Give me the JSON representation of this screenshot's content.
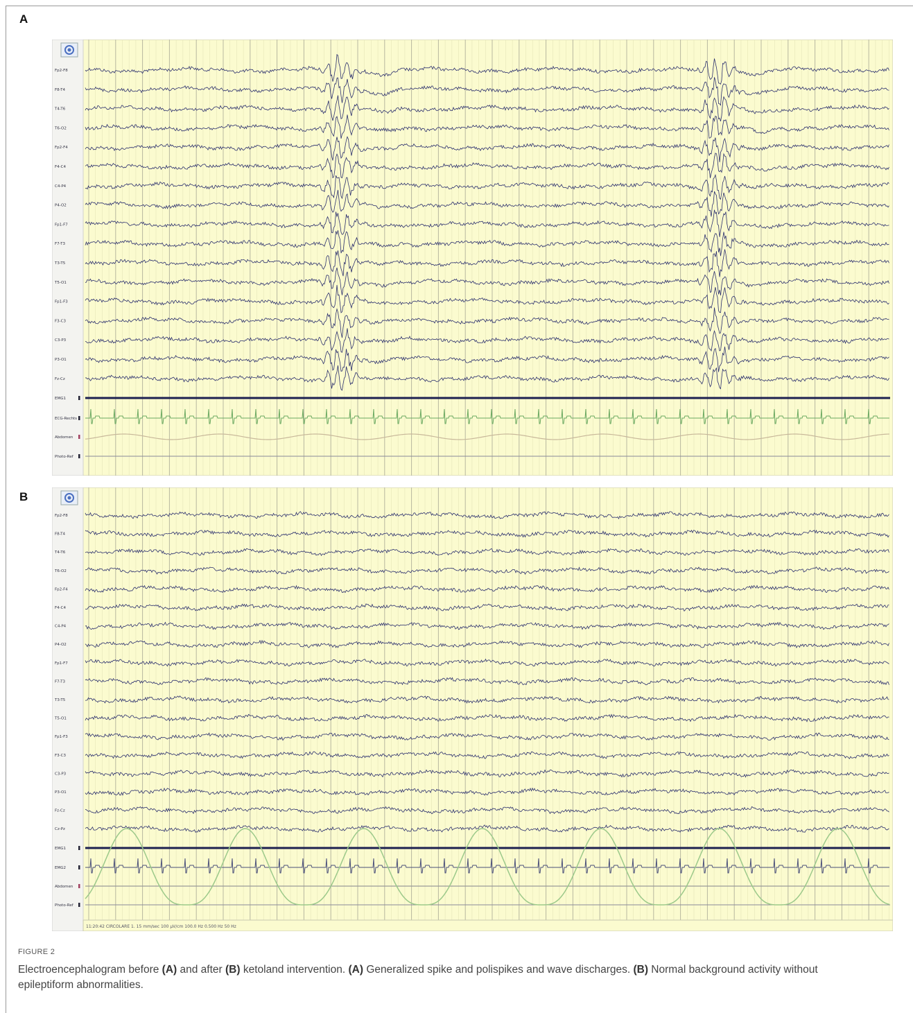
{
  "figure": {
    "panels": [
      {
        "label": "A",
        "eeg_channels": [
          "Fp2-F8",
          "F8-T4",
          "T4-T6",
          "T6-O2",
          "Fp2-F4",
          "F4-C4",
          "C4-P4",
          "P4-O2",
          "Fp1-F7",
          "F7-T3",
          "T3-T5",
          "T5-O1",
          "Fp1-F3",
          "F3-C3",
          "C3-P3",
          "P3-O1",
          "Fz-Cz"
        ],
        "other_channels": [
          "EMG1",
          "ECG-Rechts",
          "Abdomen",
          "Photo-Ref"
        ]
      },
      {
        "label": "B",
        "eeg_channels": [
          "Fp2-F8",
          "F8-T4",
          "T4-T6",
          "T6-O2",
          "Fp2-F4",
          "F4-C4",
          "C4-P4",
          "P4-O2",
          "Fp1-F7",
          "F7-T3",
          "T3-T5",
          "T5-O1",
          "Fp1-F3",
          "F3-C3",
          "C3-P3",
          "P3-O1",
          "Fz-Cz",
          "Cz-Pz"
        ],
        "other_channels": [
          "EMG1",
          "EMG2",
          "Abdomen",
          "Photo-Ref"
        ],
        "footer": "11:20:42 CIRCOLARE 1. 15 mm/sec 100 µV/cm 100.0 Hz 0.500 Hz 50 Hz"
      }
    ],
    "caption": {
      "label": "FIGURE 2",
      "segments": [
        {
          "text": "Electroencephalogram before ",
          "bold": false
        },
        {
          "text": "(A)",
          "bold": true
        },
        {
          "text": " and after ",
          "bold": false
        },
        {
          "text": "(B)",
          "bold": true
        },
        {
          "text": " ketoland intervention. ",
          "bold": false
        },
        {
          "text": "(A)",
          "bold": true
        },
        {
          "text": " Generalized spike and polispikes and wave discharges. ",
          "bold": false
        },
        {
          "text": "(B)",
          "bold": true
        },
        {
          "text": " Normal background activity without epileptiform abnormalities.",
          "bold": false
        }
      ]
    }
  }
}
